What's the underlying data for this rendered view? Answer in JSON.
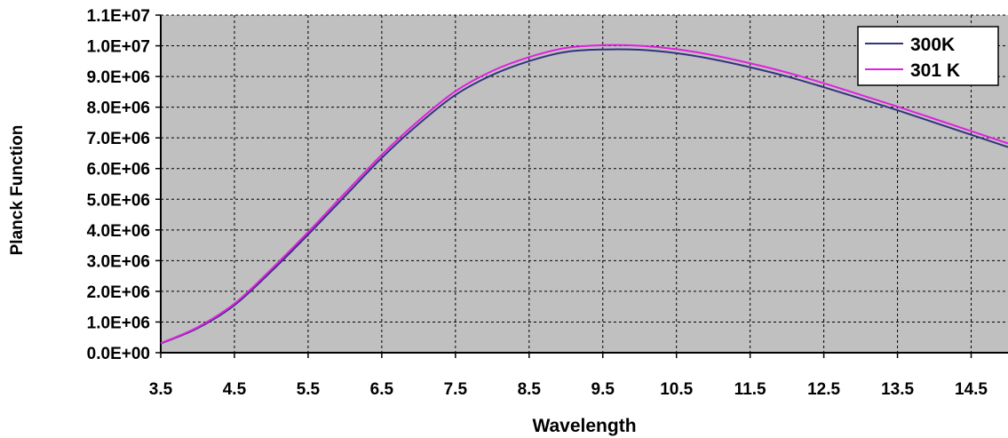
{
  "chart_data": {
    "type": "line",
    "xlabel": "Wavelength",
    "ylabel": "Planck Function",
    "xlim": [
      3.5,
      15.0
    ],
    "ylim": [
      0,
      11000000
    ],
    "x_ticks": [
      3.5,
      4.5,
      5.5,
      6.5,
      7.5,
      8.5,
      9.5,
      10.5,
      11.5,
      12.5,
      13.5,
      14.5
    ],
    "x_tick_labels": [
      "3.5",
      "4.5",
      "5.5",
      "6.5",
      "7.5",
      "8.5",
      "9.5",
      "10.5",
      "11.5",
      "12.5",
      "13.5",
      "14.5"
    ],
    "y_ticks": [
      0,
      1000000,
      2000000,
      3000000,
      4000000,
      5000000,
      6000000,
      7000000,
      8000000,
      9000000,
      10000000,
      11000000
    ],
    "y_tick_labels": [
      "0.0E+00",
      "1.0E+06",
      "2.0E+06",
      "3.0E+06",
      "4.0E+06",
      "5.0E+06",
      "6.0E+06",
      "7.0E+06",
      "8.0E+06",
      "9.0E+06",
      "1.0E+07",
      "1.1E+07"
    ],
    "grid": true,
    "legend_position": "top-right",
    "plot_background": "#c0c0c0",
    "x": [
      3.5,
      4.0,
      4.5,
      5.0,
      5.5,
      6.0,
      6.5,
      7.0,
      7.5,
      8.0,
      8.5,
      9.0,
      9.5,
      10.0,
      10.5,
      11.0,
      11.5,
      12.0,
      12.5,
      13.0,
      13.5,
      14.0,
      14.5,
      15.0
    ],
    "series": [
      {
        "name": "300K",
        "color": "#33337f",
        "values": [
          300000,
          800000,
          1550000,
          2650000,
          3850000,
          5100000,
          6350000,
          7450000,
          8400000,
          9050000,
          9500000,
          9800000,
          9880000,
          9870000,
          9760000,
          9560000,
          9300000,
          9000000,
          8650000,
          8280000,
          7900000,
          7500000,
          7100000,
          6700000
        ]
      },
      {
        "name": "301 K",
        "color": "#e020e0",
        "values": [
          310000,
          830000,
          1600000,
          2720000,
          3930000,
          5200000,
          6450000,
          7560000,
          8520000,
          9180000,
          9630000,
          9930000,
          10020000,
          10000000,
          9890000,
          9690000,
          9430000,
          9130000,
          8780000,
          8400000,
          8020000,
          7620000,
          7220000,
          6820000
        ]
      }
    ]
  }
}
